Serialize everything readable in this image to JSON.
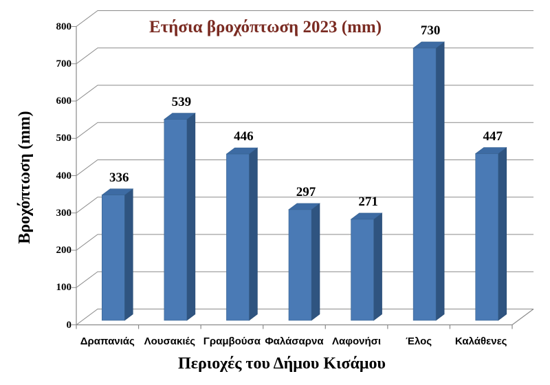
{
  "chart_data": {
    "type": "bar",
    "variant": "3d-column",
    "title": "Ετήσια βροχόπτωση 2023 (mm)",
    "xlabel": "Περιοχές του Δήμου Κισάμου",
    "ylabel": "Βροχόπτωση (mm)",
    "categories": [
      "Δραπανιάς",
      "Λουσακιές",
      "Γραμβούσα",
      "Φαλάσαρνα",
      "Λαφονήσι",
      "Έλος",
      "Καλάθενες"
    ],
    "values": [
      336,
      539,
      446,
      297,
      271,
      730,
      447
    ],
    "ylim": [
      0,
      800
    ],
    "ytick_step": 100,
    "yticks": [
      0,
      100,
      200,
      300,
      400,
      500,
      600,
      700,
      800
    ],
    "grid": true,
    "legend": "none",
    "data_labels": true
  },
  "colors": {
    "bar_front": "#4a7ab5",
    "bar_side": "#2f5480",
    "bar_top": "#3d6ba3",
    "bar_edge_front": "#3a638f",
    "bar_edge_side": "#264a73",
    "bar_edge_top": "#356090",
    "grid_line": "#8a8a8a",
    "axis_line": "#8a8a8a",
    "title_text": "#7a2b22",
    "label_text": "#000000",
    "background": "#ffffff"
  }
}
